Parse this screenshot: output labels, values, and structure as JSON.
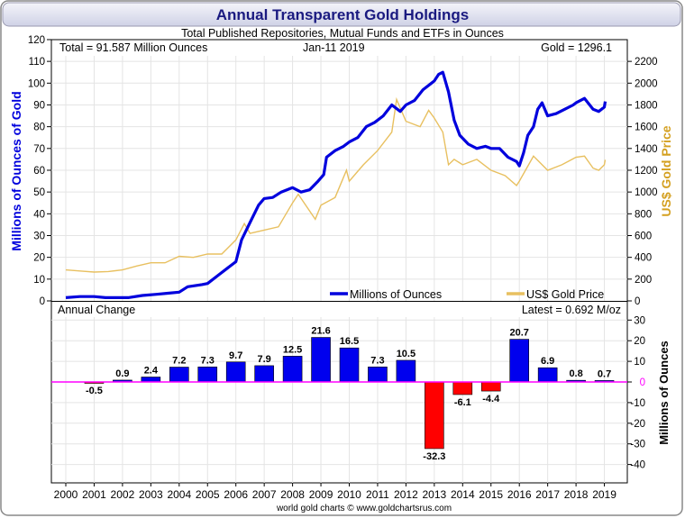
{
  "title": "Annual Transparent Gold Holdings",
  "subtitle": "Total Published Repositories, Mutual Funds and ETFs in Ounces",
  "top_panel": {
    "total_text": "Total = 91.587 Million Ounces",
    "date_text": "Jan-11  2019",
    "gold_text": "Gold = 1296.1",
    "ylabel_left": "Millions of Ounces of Gold",
    "ylabel_right": "US$ Gold Price",
    "legend": [
      "Millions of Ounces",
      "US$ Gold Price"
    ],
    "left_ticks": [
      "0",
      "10",
      "20",
      "30",
      "40",
      "50",
      "60",
      "70",
      "80",
      "90",
      "100",
      "110",
      "120"
    ],
    "right_ticks": [
      "0",
      "200",
      "400",
      "600",
      "800",
      "1000",
      "1200",
      "1400",
      "1600",
      "1800",
      "2000",
      "2200"
    ]
  },
  "bottom_panel": {
    "label": "Annual Change",
    "latest_text": "Latest = 0.692 M/oz",
    "ylabel_right": "Millions of Ounces",
    "ticks": [
      "30",
      "20",
      "10",
      "0",
      "-10",
      "-20",
      "-30",
      "-40"
    ]
  },
  "x_labels": [
    "2000",
    "2001",
    "2002",
    "2003",
    "2004",
    "2005",
    "2006",
    "2007",
    "2008",
    "2009",
    "2010",
    "2011",
    "2012",
    "2013",
    "2014",
    "2015",
    "2016",
    "2017",
    "2018",
    "2019"
  ],
  "footer": "world gold charts © www.goldchartsrus.com",
  "colors": {
    "holdings": "#0000dd",
    "gold": "#e8c060",
    "positive": "#0000ee",
    "negative": "#ff0000",
    "zero_line": "#ff00ff",
    "title": "#1a1a80",
    "right_axis": "#d4a020"
  },
  "chart_data": [
    {
      "type": "line",
      "title": "Annual Transparent Gold Holdings",
      "subtitle": "Total Published Repositories, Mutual Funds and ETFs in Ounces",
      "ylabel": "Millions of Ounces of Gold",
      "ylabel_right": "US$ Gold Price",
      "ylim": [
        0,
        120
      ],
      "ylim_right": [
        0,
        2200
      ],
      "xlim": [
        2000,
        2019.03
      ],
      "series": [
        {
          "name": "Millions of Ounces",
          "axis": "left",
          "x": [
            2000.0,
            2000.5,
            2001.0,
            2001.4,
            2001.8,
            2002.2,
            2002.7,
            2003.2,
            2003.6,
            2004.0,
            2004.3,
            2004.8,
            2005.0,
            2005.4,
            2005.7,
            2006.0,
            2006.2,
            2006.5,
            2006.8,
            2007.0,
            2007.3,
            2007.6,
            2008.0,
            2008.3,
            2008.6,
            2008.9,
            2009.1,
            2009.2,
            2009.5,
            2009.8,
            2010.0,
            2010.3,
            2010.6,
            2010.9,
            2011.2,
            2011.5,
            2011.8,
            2012.0,
            2012.3,
            2012.6,
            2012.9,
            2013.0,
            2013.15,
            2013.3,
            2013.5,
            2013.7,
            2013.9,
            2014.2,
            2014.5,
            2014.8,
            2015.0,
            2015.3,
            2015.6,
            2015.9,
            2016.0,
            2016.15,
            2016.3,
            2016.5,
            2016.65,
            2016.8,
            2017.0,
            2017.3,
            2017.6,
            2017.9,
            2018.0,
            2018.3,
            2018.6,
            2018.8,
            2019.0,
            2019.03
          ],
          "values": [
            1.5,
            2,
            2,
            1.5,
            1.5,
            1.5,
            2.5,
            3,
            3.5,
            4,
            6.5,
            7.5,
            8,
            12,
            15,
            18,
            28,
            36,
            44,
            47,
            47.5,
            50,
            52,
            50,
            51,
            55,
            58,
            66,
            69,
            71,
            73,
            75,
            80,
            82,
            85,
            90,
            87,
            90,
            92,
            97,
            100,
            101,
            104,
            105,
            96,
            83,
            76,
            72,
            70,
            71,
            70,
            70,
            66,
            64,
            62,
            68,
            76,
            80,
            88,
            91,
            85,
            86,
            88,
            90,
            91,
            93,
            88,
            87,
            89,
            91.6
          ]
        },
        {
          "name": "US$ Gold Price",
          "axis": "right",
          "x": [
            2000.0,
            2000.5,
            2001.0,
            2001.5,
            2002.0,
            2002.5,
            2003.0,
            2003.5,
            2004.0,
            2004.5,
            2005.0,
            2005.5,
            2006.0,
            2006.3,
            2006.5,
            2007.0,
            2007.5,
            2008.0,
            2008.2,
            2008.8,
            2009.0,
            2009.5,
            2009.9,
            2010.0,
            2010.5,
            2011.0,
            2011.5,
            2011.67,
            2012.0,
            2012.5,
            2012.8,
            2013.0,
            2013.3,
            2013.5,
            2013.7,
            2014.0,
            2014.5,
            2015.0,
            2015.5,
            2015.9,
            2016.0,
            2016.5,
            2017.0,
            2017.5,
            2018.0,
            2018.3,
            2018.6,
            2018.8,
            2019.0,
            2019.03
          ],
          "values": [
            285,
            275,
            265,
            270,
            285,
            320,
            350,
            350,
            410,
            400,
            430,
            430,
            560,
            710,
            620,
            650,
            680,
            900,
            980,
            750,
            880,
            950,
            1200,
            1100,
            1250,
            1380,
            1550,
            1850,
            1650,
            1600,
            1750,
            1680,
            1550,
            1250,
            1300,
            1250,
            1300,
            1200,
            1150,
            1060,
            1100,
            1330,
            1200,
            1250,
            1320,
            1330,
            1220,
            1200,
            1250,
            1296
          ]
        }
      ],
      "legend": "bottom-right"
    },
    {
      "type": "bar",
      "title": "Annual Change",
      "ylabel": "Millions of Ounces",
      "ylim": [
        -47,
        33
      ],
      "categories": [
        "2000",
        "2001",
        "2002",
        "2003",
        "2004",
        "2005",
        "2006",
        "2007",
        "2008",
        "2009",
        "2010",
        "2011",
        "2012",
        "2013",
        "2014",
        "2015",
        "2016",
        "2017",
        "2018",
        "2019"
      ],
      "values": [
        0,
        -0.5,
        0.9,
        2.4,
        7.2,
        7.3,
        9.7,
        7.9,
        12.5,
        21.6,
        16.5,
        7.3,
        10.5,
        -32.3,
        -6.1,
        -4.4,
        20.7,
        6.9,
        0.8,
        0.7
      ],
      "labels": [
        "",
        "-0.5",
        "0.9",
        "2.4",
        "7.2",
        "7.3",
        "9.7",
        "7.9",
        "12.5",
        "21.6",
        "16.5",
        "7.3",
        "10.5",
        "-32.3",
        "-6.1",
        "-4.4",
        "20.7",
        "6.9",
        "0.8",
        "0.7"
      ]
    }
  ]
}
